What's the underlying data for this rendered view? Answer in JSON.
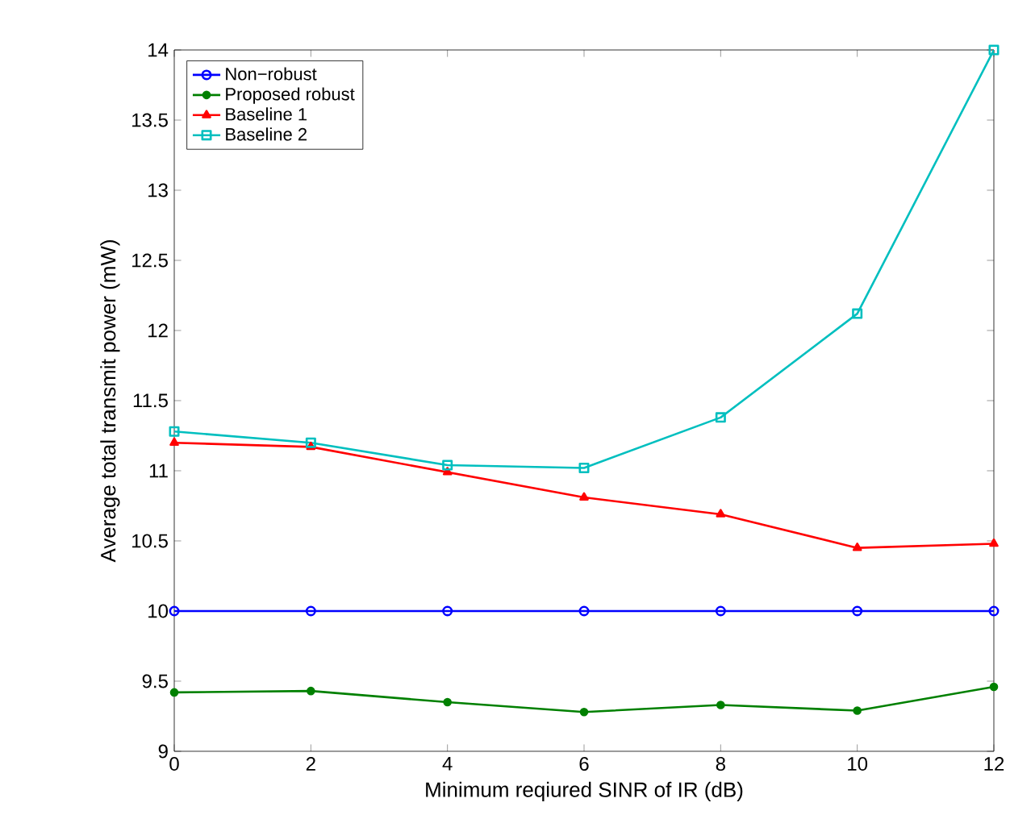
{
  "chart_data": {
    "type": "line",
    "xlabel": "Minimum reqiured SINR of IR (dB)",
    "ylabel": "Average total transmit power (mW)",
    "x": [
      0,
      2,
      4,
      6,
      8,
      10,
      12
    ],
    "series": [
      {
        "name": "Non−robust",
        "color": "#0000ff",
        "marker": "circle",
        "values": [
          10,
          10,
          10,
          10,
          10,
          10,
          10
        ]
      },
      {
        "name": "Proposed robust",
        "color": "#008000",
        "marker": "circle",
        "values": [
          9.42,
          9.43,
          9.35,
          9.28,
          9.33,
          9.29,
          9.46
        ]
      },
      {
        "name": "Baseline 1",
        "color": "#ff0000",
        "marker": "triangle",
        "values": [
          11.2,
          11.17,
          10.99,
          10.81,
          10.69,
          10.45,
          10.48
        ]
      },
      {
        "name": "Baseline 2",
        "color": "#00bfbf",
        "marker": "square",
        "values": [
          11.28,
          11.2,
          11.04,
          11.02,
          11.38,
          12.12,
          14.0
        ]
      }
    ],
    "xlim": [
      0,
      12
    ],
    "xticks": [
      0,
      2,
      4,
      6,
      8,
      10,
      12
    ],
    "ylim": [
      9,
      14
    ],
    "yticks": [
      9,
      9.5,
      10,
      10.5,
      11,
      11.5,
      12,
      12.5,
      13,
      13.5,
      14
    ],
    "grid": false,
    "legend": "top left",
    "line_style": "solid"
  }
}
